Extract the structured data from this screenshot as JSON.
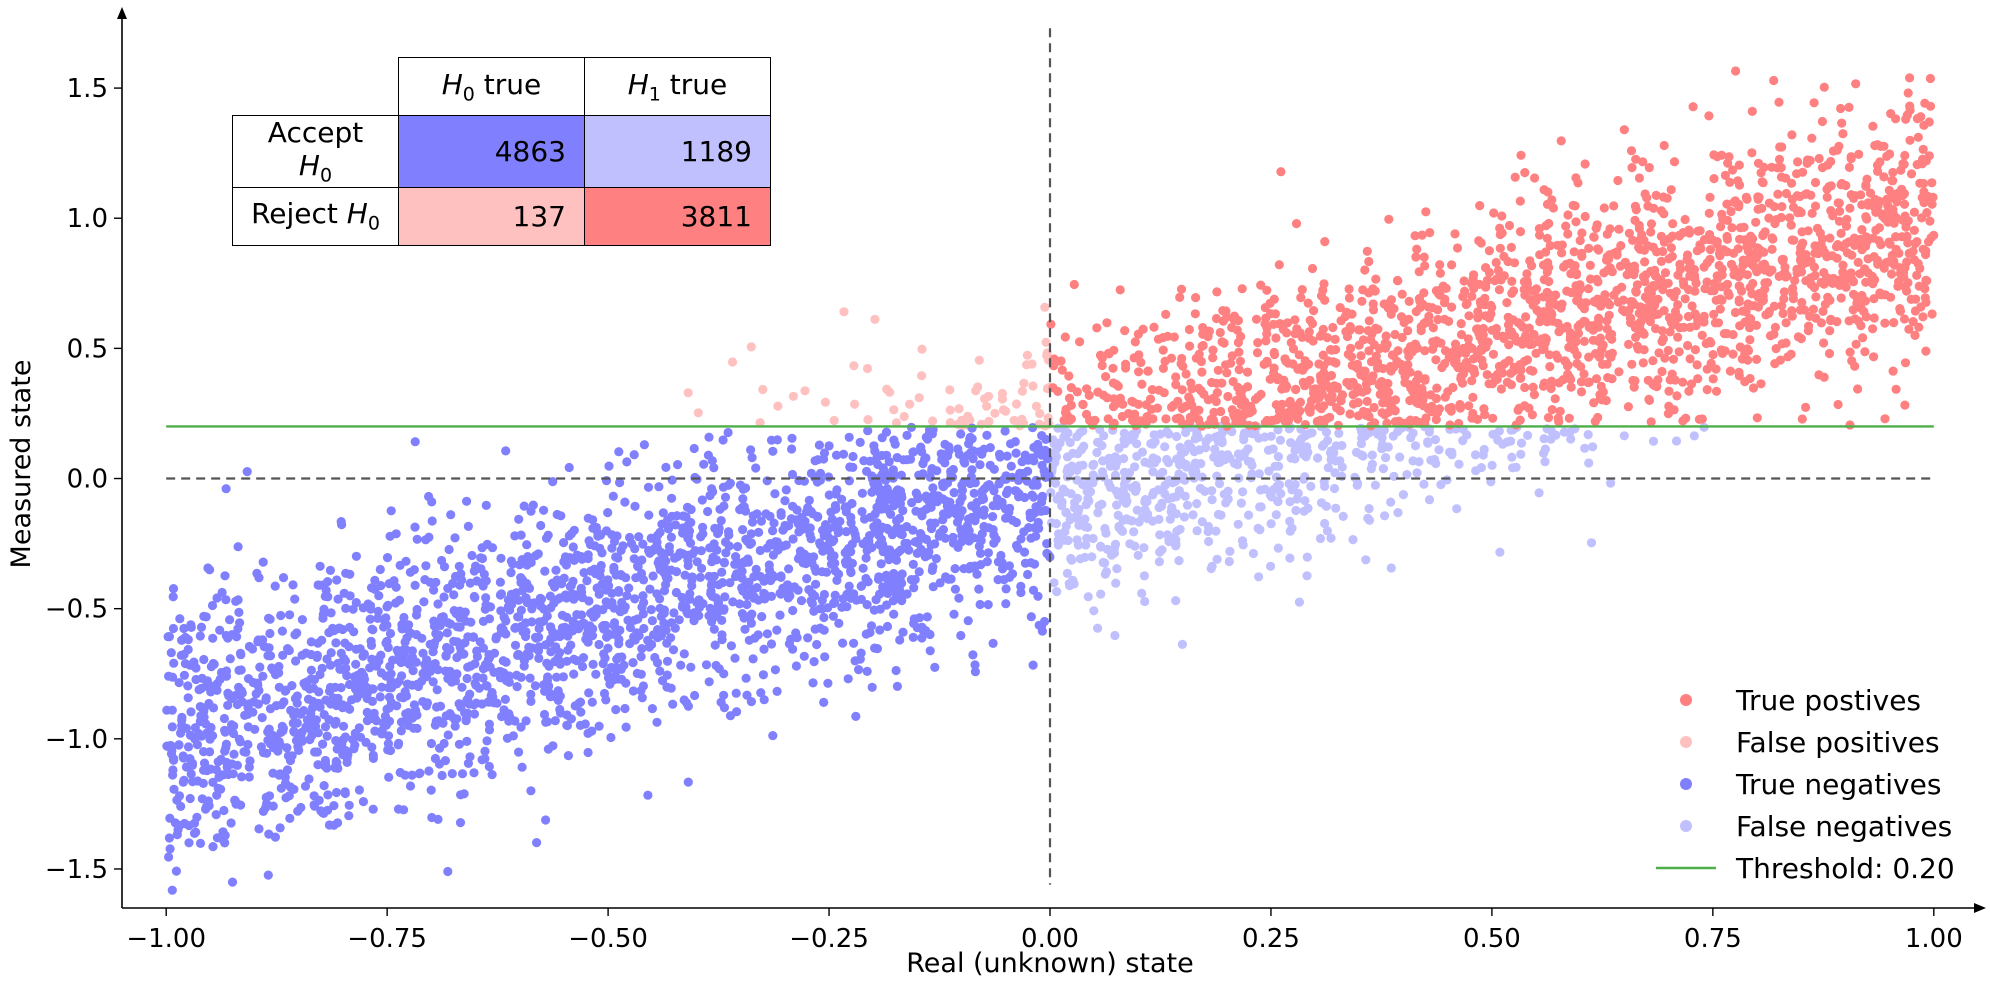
{
  "chart_data": {
    "type": "scatter",
    "xlabel": "Real (unknown) state",
    "ylabel": "Measured state",
    "xlim": [
      -1.05,
      1.05
    ],
    "ylim": [
      -1.65,
      1.8
    ],
    "x_ticks": [
      "−1.00",
      "−0.75",
      "−0.50",
      "−0.25",
      "0.00",
      "0.25",
      "0.50",
      "0.75",
      "1.00"
    ],
    "x_tick_values": [
      -1.0,
      -0.75,
      -0.5,
      -0.25,
      0.0,
      0.25,
      0.5,
      0.75,
      1.0
    ],
    "y_ticks": [
      "−1.5",
      "−1.0",
      "−0.5",
      "0.0",
      "0.5",
      "1.0",
      "1.5"
    ],
    "y_tick_values": [
      -1.5,
      -1.0,
      -0.5,
      0.0,
      0.5,
      1.0,
      1.5
    ],
    "grid": false,
    "legend_position": "bottom-right",
    "threshold": 0.2,
    "reference_lines": {
      "vertical_x": 0.0,
      "horizontal_y": 0.0,
      "vertical_y_range": [
        -1.56,
        1.73
      ]
    },
    "relationship": {
      "intercept": 0.0,
      "slope": 1.0,
      "noise_sd": 0.25,
      "points_per_group_drawn": 2500
    },
    "series": [
      {
        "name": "True postives",
        "color": "#ff8080",
        "x_range": [
          0.0,
          1.0
        ],
        "y_region": "above threshold",
        "count": 3811
      },
      {
        "name": "False positives",
        "color": "#ffc0c0",
        "x_range": [
          -1.0,
          0.0
        ],
        "y_region": "above threshold",
        "count": 137
      },
      {
        "name": "True negatives",
        "color": "#8080ff",
        "x_range": [
          -1.0,
          0.0
        ],
        "y_region": "below threshold",
        "count": 4863
      },
      {
        "name": "False negatives",
        "color": "#c0c0ff",
        "x_range": [
          0.0,
          1.0
        ],
        "y_region": "below threshold",
        "count": 1189
      }
    ],
    "threshold_line": {
      "label": "Threshold: 0.20",
      "color": "#4daf4a"
    },
    "confusion_table": {
      "col_headers": [
        {
          "sym": "H",
          "sub": "0",
          "rest": " true"
        },
        {
          "sym": "H",
          "sub": "1",
          "rest": " true"
        }
      ],
      "rows": [
        {
          "label": "Accept ",
          "sym": "H",
          "sub": "0",
          "values": [
            "4863",
            "1189"
          ],
          "colors": [
            "#8080ff",
            "#c0c0ff"
          ]
        },
        {
          "label": "Reject ",
          "sym": "H",
          "sub": "0",
          "values": [
            "137",
            "3811"
          ],
          "colors": [
            "#ffc0c0",
            "#ff8080"
          ]
        }
      ]
    }
  }
}
